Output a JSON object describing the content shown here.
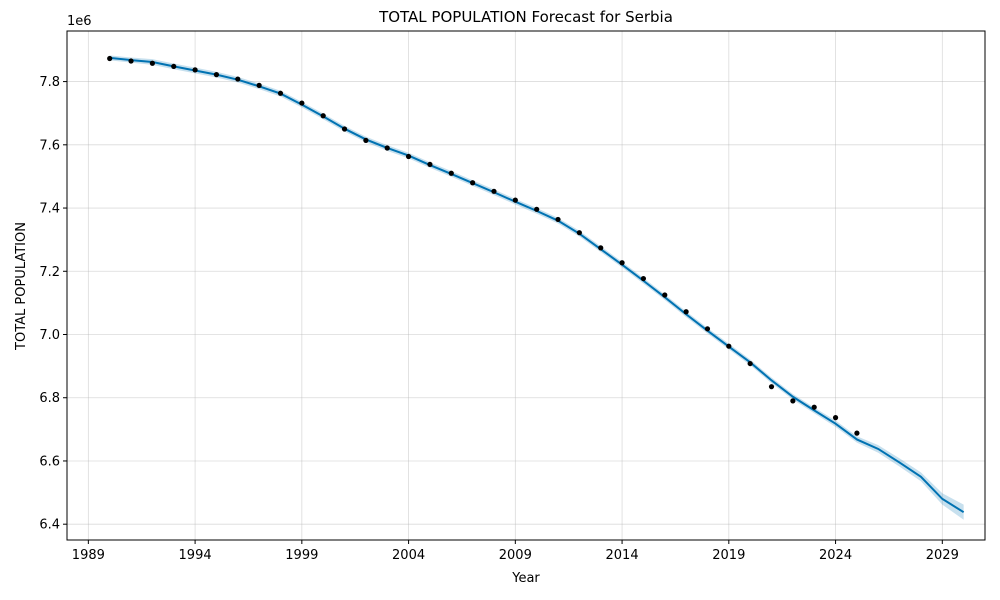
{
  "chart_data": {
    "type": "line",
    "title": "TOTAL POPULATION Forecast for Serbia",
    "xlabel": "Year",
    "ylabel": "TOTAL POPULATION",
    "y_offset_label": "1e6",
    "xlim": [
      1988,
      2031
    ],
    "ylim": [
      6.35,
      7.96
    ],
    "x_ticks": [
      1989,
      1994,
      1999,
      2004,
      2009,
      2014,
      2019,
      2024,
      2029
    ],
    "x_tick_labels": [
      "1989",
      "1994",
      "1999",
      "2004",
      "2009",
      "2014",
      "2019",
      "2024",
      "2029"
    ],
    "y_ticks": [
      6.4,
      6.6,
      6.8,
      7.0,
      7.2,
      7.4,
      7.6,
      7.8
    ],
    "y_tick_labels": [
      "6.4",
      "6.6",
      "6.8",
      "7.0",
      "7.2",
      "7.4",
      "7.6",
      "7.8"
    ],
    "grid": true,
    "colors": {
      "forecast": "#0072B2",
      "band": "#0072B2",
      "observed": "#000000"
    },
    "series": [
      {
        "kind": "observed",
        "x": [
          1990,
          1991,
          1992,
          1993,
          1994,
          1995,
          1996,
          1997,
          1998,
          1999,
          2000,
          2001,
          2002,
          2003,
          2004,
          2005,
          2006,
          2007,
          2008,
          2009,
          2010,
          2011,
          2012,
          2013,
          2014,
          2015,
          2016,
          2017,
          2018,
          2019,
          2020,
          2021,
          2022,
          2023,
          2024,
          2025
        ],
        "y": [
          7.873,
          7.865,
          7.858,
          7.848,
          7.837,
          7.822,
          7.808,
          7.788,
          7.763,
          7.732,
          7.692,
          7.65,
          7.614,
          7.59,
          7.563,
          7.538,
          7.51,
          7.48,
          7.453,
          7.425,
          7.396,
          7.364,
          7.322,
          7.274,
          7.227,
          7.177,
          7.125,
          7.072,
          7.018,
          6.963,
          6.908,
          6.835,
          6.79,
          6.77,
          6.737,
          6.688
        ]
      },
      {
        "kind": "forecast",
        "x": [
          1990,
          1991,
          1992,
          1993,
          1994,
          1995,
          1996,
          1997,
          1998,
          1999,
          2000,
          2001,
          2002,
          2003,
          2004,
          2005,
          2006,
          2007,
          2008,
          2009,
          2010,
          2011,
          2012,
          2013,
          2014,
          2015,
          2016,
          2017,
          2018,
          2019,
          2020,
          2021,
          2022,
          2023,
          2024,
          2025,
          2026,
          2027,
          2028,
          2029,
          2030
        ],
        "y": [
          7.875,
          7.868,
          7.862,
          7.848,
          7.835,
          7.822,
          7.806,
          7.785,
          7.762,
          7.727,
          7.69,
          7.651,
          7.617,
          7.59,
          7.566,
          7.536,
          7.508,
          7.479,
          7.45,
          7.42,
          7.391,
          7.36,
          7.319,
          7.27,
          7.221,
          7.17,
          7.118,
          7.064,
          7.012,
          6.962,
          6.912,
          6.855,
          6.803,
          6.76,
          6.718,
          6.668,
          6.638,
          6.595,
          6.55,
          6.48,
          6.438
        ],
        "lower": [
          7.867,
          7.86,
          7.853,
          7.839,
          7.826,
          7.813,
          7.797,
          7.776,
          7.753,
          7.718,
          7.681,
          7.642,
          7.608,
          7.581,
          7.557,
          7.527,
          7.499,
          7.47,
          7.441,
          7.411,
          7.382,
          7.351,
          7.31,
          7.261,
          7.212,
          7.161,
          7.109,
          7.055,
          7.003,
          6.953,
          6.903,
          6.846,
          6.794,
          6.751,
          6.708,
          6.658,
          6.626,
          6.582,
          6.536,
          6.462,
          6.414
        ],
        "upper": [
          7.883,
          7.876,
          7.871,
          7.857,
          7.844,
          7.831,
          7.815,
          7.794,
          7.771,
          7.736,
          7.699,
          7.66,
          7.626,
          7.599,
          7.575,
          7.545,
          7.517,
          7.488,
          7.459,
          7.429,
          7.4,
          7.369,
          7.328,
          7.279,
          7.23,
          7.179,
          7.127,
          7.073,
          7.021,
          6.971,
          6.921,
          6.864,
          6.812,
          6.769,
          6.728,
          6.678,
          6.65,
          6.608,
          6.564,
          6.498,
          6.462
        ]
      }
    ]
  }
}
